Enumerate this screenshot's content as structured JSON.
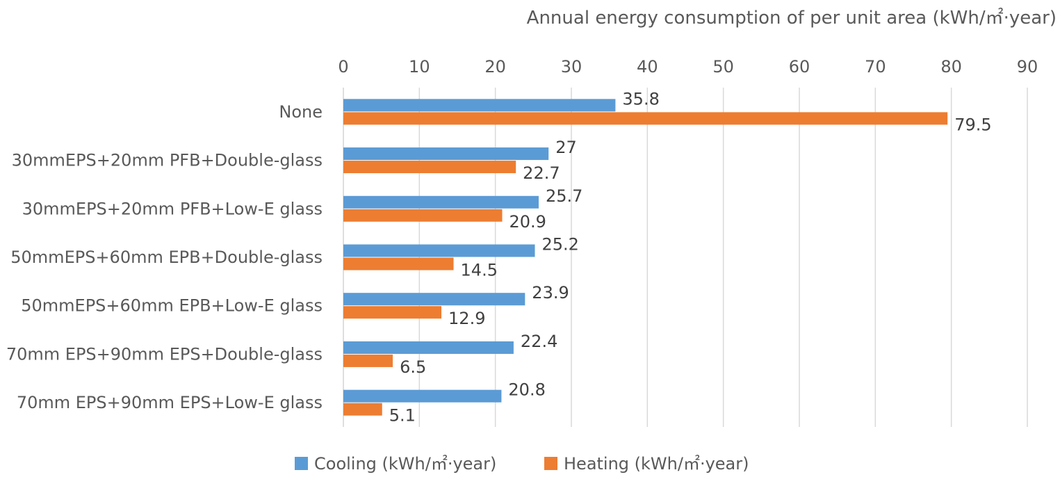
{
  "chart_data": {
    "type": "bar",
    "orientation": "horizontal",
    "xlabel": "Annual energy consumption of per unit area (kWh/㎡·year)",
    "xlabel_position": "top",
    "xlim": [
      0,
      90
    ],
    "xticks": [
      0,
      10,
      20,
      30,
      40,
      50,
      60,
      70,
      80,
      90
    ],
    "grid": true,
    "legend_position": "bottom",
    "categories": [
      "None",
      "30mmEPS+20mm PFB+Double-glass",
      "30mmEPS+20mm PFB+Low-E glass",
      "50mmEPS+60mm EPB+Double-glass",
      "50mmEPS+60mm EPB+Low-E glass",
      "70mm EPS+90mm EPS+Double-glass",
      "70mm EPS+90mm EPS+Low-E glass"
    ],
    "series": [
      {
        "name": "Cooling (kWh/㎡·year)",
        "color": "#5B9BD5",
        "values": [
          35.8,
          27,
          25.7,
          25.2,
          23.9,
          22.4,
          20.8
        ]
      },
      {
        "name": "Heating (kWh/㎡·year)",
        "color": "#ED7D31",
        "values": [
          79.5,
          22.7,
          20.9,
          14.5,
          12.9,
          6.5,
          5.1
        ]
      }
    ]
  }
}
